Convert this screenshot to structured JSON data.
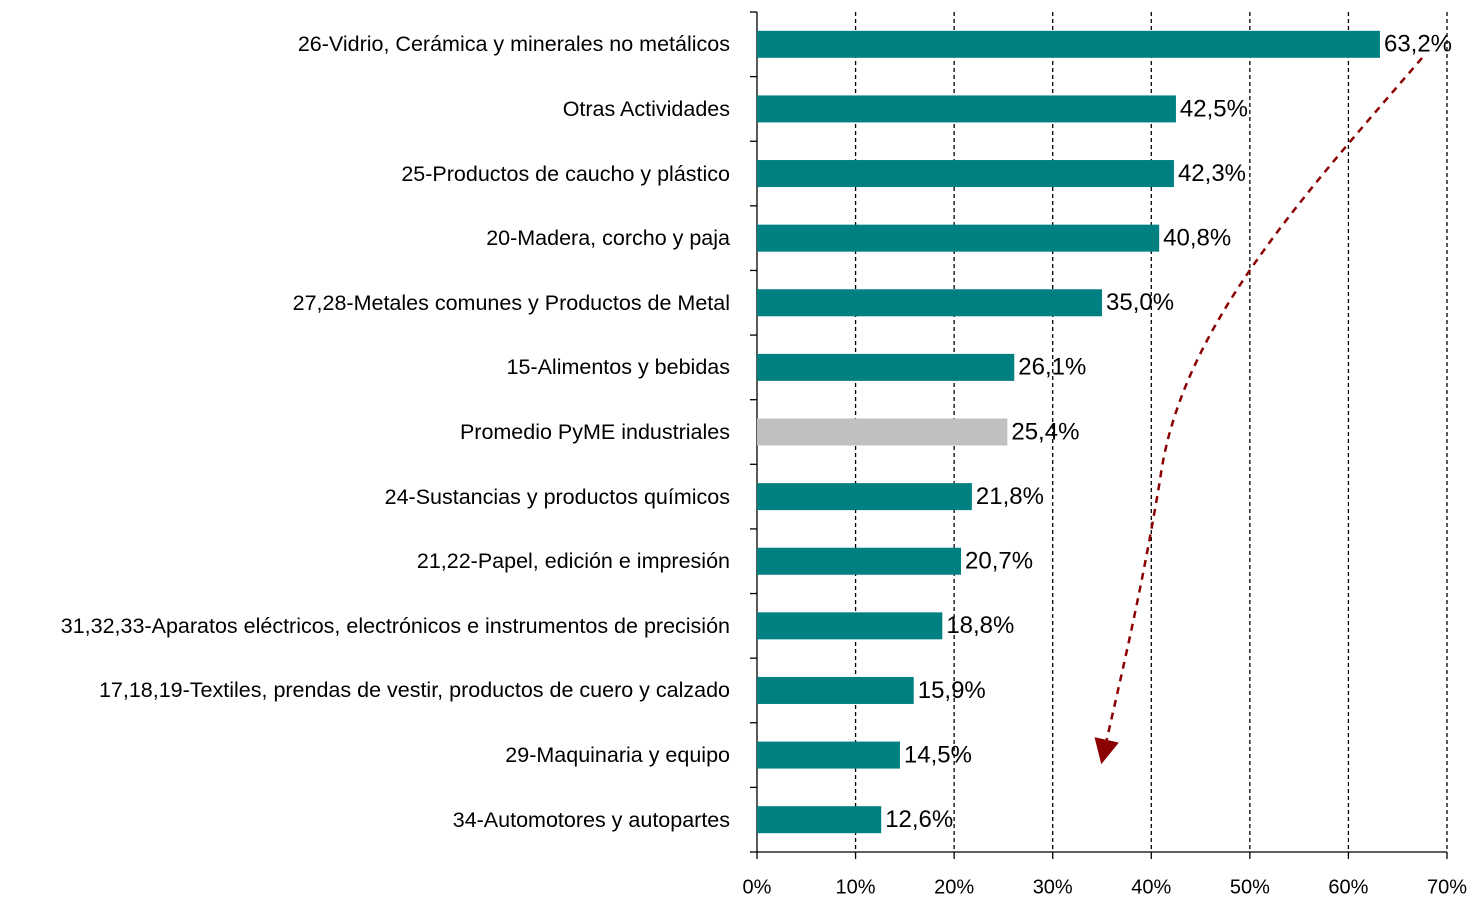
{
  "chart_data": {
    "type": "barh",
    "categories": [
      "26-Vidrio, Cerámica y minerales no metálicos",
      "Otras Actividades",
      "25-Productos de caucho y plástico",
      "20-Madera, corcho y paja",
      "27,28-Metales comunes y Productos de Metal",
      "15-Alimentos y bebidas",
      "Promedio PyME industriales",
      "24-Sustancias y productos químicos",
      "21,22-Papel, edición e impresión",
      "31,32,33-Aparatos eléctricos, electrónicos e instrumentos de precisión",
      "17,18,19-Textiles, prendas de vestir, productos de cuero y calzado",
      "29-Maquinaria y equipo",
      "34-Automotores y autopartes"
    ],
    "values": [
      63.2,
      42.5,
      42.3,
      40.8,
      35.0,
      26.1,
      25.4,
      21.8,
      20.7,
      18.8,
      15.9,
      14.5,
      12.6
    ],
    "value_labels": [
      "63,2%",
      "42,5%",
      "42,3%",
      "40,8%",
      "35,0%",
      "26,1%",
      "25,4%",
      "21,8%",
      "20,7%",
      "18,8%",
      "15,9%",
      "14,5%",
      "12,6%"
    ],
    "colors": [
      "#008080",
      "#008080",
      "#008080",
      "#008080",
      "#008080",
      "#008080",
      "#c0c0c0",
      "#008080",
      "#008080",
      "#008080",
      "#008080",
      "#008080",
      "#008080"
    ],
    "xlim": [
      0,
      70
    ],
    "xticks": [
      {
        "value": 0,
        "label": "0%"
      },
      {
        "value": 10,
        "label": "10%"
      },
      {
        "value": 20,
        "label": "20%"
      },
      {
        "value": 30,
        "label": "30%"
      },
      {
        "value": 40,
        "label": "40%"
      },
      {
        "value": 50,
        "label": "50%"
      },
      {
        "value": 60,
        "label": "60%"
      },
      {
        "value": 70,
        "label": "70%"
      }
    ],
    "grid": true
  }
}
